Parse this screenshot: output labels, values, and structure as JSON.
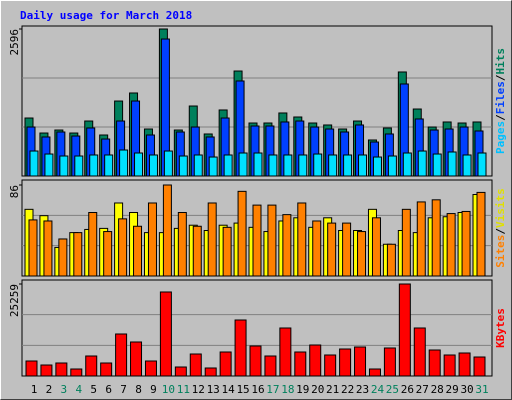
{
  "title": "Daily usage for March 2018",
  "chart_data": [
    {
      "type": "bar",
      "ylim": [
        0,
        2596
      ],
      "yticks": [
        2596
      ],
      "grid": true,
      "legend_separator": "/",
      "series": [
        {
          "name": "Hits",
          "color": "#00805c",
          "label_color": "#00805c",
          "values": [
            1024,
            759,
            812,
            759,
            971,
            724,
            1324,
            1466,
            830,
            2596,
            812,
            1236,
            742,
            1166,
            1854,
            936,
            936,
            1113,
            1042,
            936,
            901,
            830,
            971,
            636,
            848,
            1837,
            1183,
            865,
            954,
            936,
            954
          ]
        },
        {
          "name": "Files",
          "color": "#0040ff",
          "label_color": "#0040ff",
          "values": [
            865,
            689,
            777,
            706,
            848,
            653,
            971,
            1324,
            724,
            2419,
            777,
            865,
            689,
            1024,
            1678,
            883,
            883,
            954,
            971,
            865,
            830,
            777,
            901,
            600,
            742,
            1625,
            1007,
            812,
            830,
            865,
            795
          ]
        },
        {
          "name": "Pages",
          "color": "#00e0ff",
          "label_color": "#00c0ff",
          "values": [
            441,
            388,
            353,
            353,
            371,
            371,
            459,
            406,
            371,
            441,
            353,
            371,
            335,
            371,
            406,
            406,
            371,
            371,
            371,
            388,
            371,
            371,
            371,
            335,
            353,
            406,
            441,
            388,
            424,
            371,
            406
          ]
        }
      ]
    },
    {
      "type": "bar",
      "ylim": [
        0,
        86
      ],
      "yticks": [
        86
      ],
      "grid": true,
      "legend_separator": "/",
      "series": [
        {
          "name": "Visits",
          "color": "#ffff00",
          "label_color": "#e0e000",
          "values": [
            63,
            57,
            27,
            41,
            44,
            45,
            69,
            60,
            41,
            41,
            45,
            48,
            43,
            48,
            50,
            46,
            42,
            52,
            55,
            46,
            55,
            43,
            43,
            63,
            30,
            43,
            41,
            55,
            56,
            60,
            77
          ]
        },
        {
          "name": "Sites",
          "color": "#ff8000",
          "label_color": "#ff8000",
          "values": [
            53,
            52,
            35,
            41,
            60,
            42,
            54,
            47,
            69,
            86,
            60,
            47,
            69,
            46,
            80,
            67,
            67,
            58,
            69,
            52,
            50,
            50,
            42,
            55,
            30,
            63,
            70,
            72,
            59,
            61,
            79
          ]
        }
      ]
    },
    {
      "type": "bar",
      "ylim": [
        0,
        25259
      ],
      "yticks": [
        25259
      ],
      "grid": true,
      "categories": [
        "1",
        "2",
        "3",
        "4",
        "5",
        "6",
        "7",
        "8",
        "9",
        "10",
        "11",
        "12",
        "13",
        "14",
        "15",
        "16",
        "17",
        "18",
        "19",
        "20",
        "21",
        "22",
        "23",
        "24",
        "25",
        "26",
        "27",
        "28",
        "29",
        "30",
        "31"
      ],
      "category_colors": [
        "#000000",
        "#000000",
        "#00805c",
        "#00805c",
        "#000000",
        "#000000",
        "#000000",
        "#000000",
        "#000000",
        "#00805c",
        "#00805c",
        "#000000",
        "#000000",
        "#000000",
        "#000000",
        "#000000",
        "#00805c",
        "#00805c",
        "#000000",
        "#000000",
        "#000000",
        "#000000",
        "#000000",
        "#00805c",
        "#00805c",
        "#000000",
        "#000000",
        "#000000",
        "#000000",
        "#000000",
        "#00805c"
      ],
      "series": [
        {
          "name": "KBytes",
          "color": "#ff0000",
          "label_color": "#ff0000",
          "values": [
            4119,
            3020,
            3570,
            1922,
            5492,
            3570,
            11533,
            9336,
            4119,
            23066,
            2471,
            6041,
            2197,
            6590,
            15377,
            8238,
            5492,
            13181,
            6590,
            8512,
            5767,
            7414,
            7963,
            1922,
            7689,
            25259,
            13181,
            7139,
            5767,
            6316,
            5217
          ]
        }
      ]
    }
  ]
}
